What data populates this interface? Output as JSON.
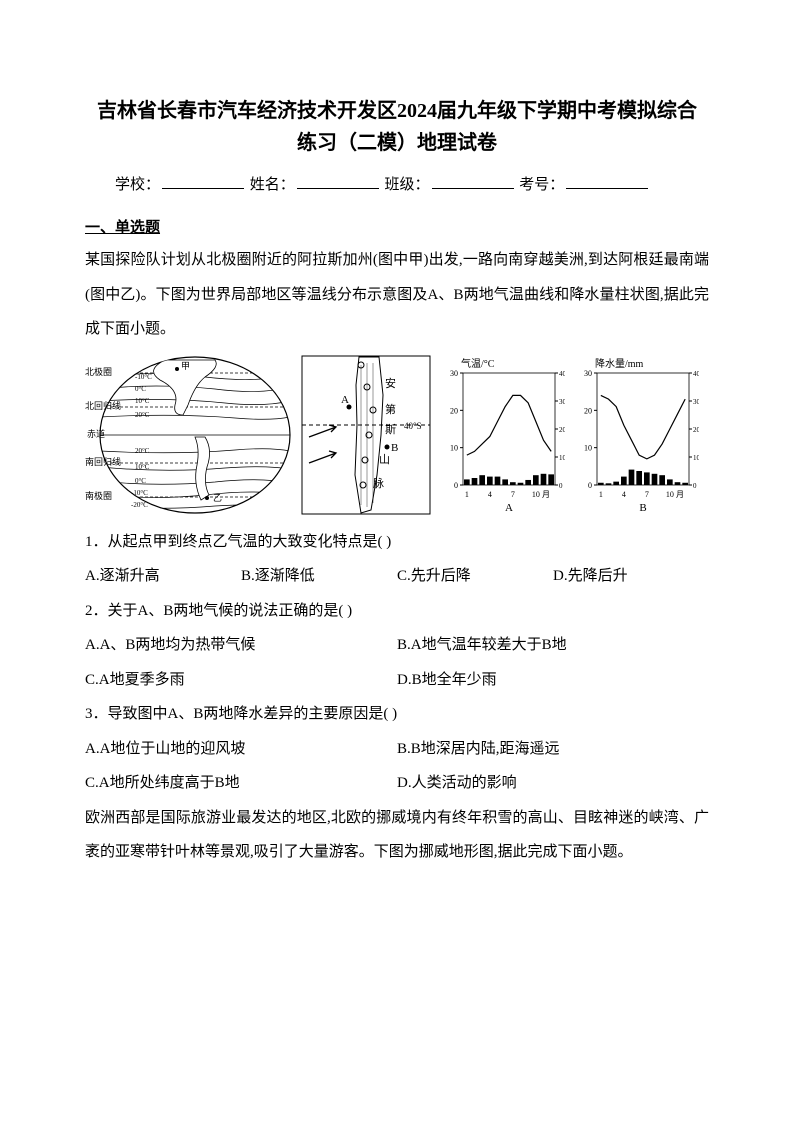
{
  "title": {
    "line1": "吉林省长春市汽车经济技术开发区2024届九年级下学期中考模拟综合",
    "line2": "练习（二模）地理试卷"
  },
  "info": {
    "school": "学校：",
    "name": "姓名：",
    "class": "班级：",
    "exam_no": "考号："
  },
  "section1": "一、单选题",
  "intro1": "某国探险队计划从北极圈附近的阿拉斯加州(图中甲)出发,一路向南穿越美洲,到达阿根廷最南端(图中乙)。下图为世界局部地区等温线分布示意图及A、B两地气温曲线和降水量柱状图,据此完成下面小题。",
  "map": {
    "labels": [
      "北极圈",
      "北回归线",
      "赤道",
      "南回归线",
      "南极圈"
    ],
    "ticks": [
      "-10°C",
      "0°C",
      "10°C",
      "20°C",
      "20°C",
      "10°C",
      "0°C",
      "-10°C",
      "-20°C"
    ],
    "markers": [
      "甲",
      "乙"
    ]
  },
  "detail": {
    "labels": [
      "A",
      "B",
      "安第斯山脉",
      "40°S"
    ]
  },
  "chartA": {
    "title": "气温/°C",
    "xlabel_months": [
      "1",
      "4",
      "7",
      "10 月"
    ],
    "letter": "A",
    "y_ticks": [
      0,
      10,
      20,
      30
    ],
    "temp_values": [
      8,
      9,
      11,
      13,
      17,
      21,
      24,
      24,
      22,
      17,
      12,
      9
    ],
    "precip_values": [
      20,
      25,
      35,
      30,
      30,
      20,
      10,
      8,
      18,
      35,
      40,
      38
    ],
    "temp_color": "#000000",
    "bar_color": "#000000",
    "bg": "#ffffff",
    "grid_color": "#000000"
  },
  "chartB": {
    "title": "降水量/mm",
    "xlabel_months": [
      "1",
      "4",
      "7",
      "10 月"
    ],
    "letter": "B",
    "y_ticks": [
      0,
      100,
      200,
      300,
      400
    ],
    "temp_values": [
      24,
      23,
      21,
      16,
      12,
      8,
      7,
      8,
      11,
      15,
      19,
      23
    ],
    "precip_values": [
      8,
      6,
      12,
      30,
      55,
      50,
      45,
      40,
      35,
      20,
      10,
      8
    ],
    "temp_color": "#000000",
    "bar_color": "#000000",
    "bg": "#ffffff",
    "grid_color": "#000000"
  },
  "q1": {
    "stem": "1．从起点甲到终点乙气温的大致变化特点是(    )",
    "opts": [
      "A.逐渐升高",
      "B.逐渐降低",
      "C.先升后降",
      "D.先降后升"
    ]
  },
  "q2": {
    "stem": "2．关于A、B两地气候的说法正确的是(    )",
    "opts": [
      "A.A、B两地均为热带气候",
      "B.A地气温年较差大于B地",
      "C.A地夏季多雨",
      "D.B地全年少雨"
    ]
  },
  "q3": {
    "stem": "3．导致图中A、B两地降水差异的主要原因是(    )",
    "opts": [
      "A.A地位于山地的迎风坡",
      "B.B地深居内陆,距海遥远",
      "C.A地所处纬度高于B地",
      "D.人类活动的影响"
    ]
  },
  "intro2": "欧洲西部是国际旅游业最发达的地区,北欧的挪威境内有终年积雪的高山、目眩神迷的峡湾、广袤的亚寒带针叶林等景观,吸引了大量游客。下图为挪威地形图,据此完成下面小题。"
}
